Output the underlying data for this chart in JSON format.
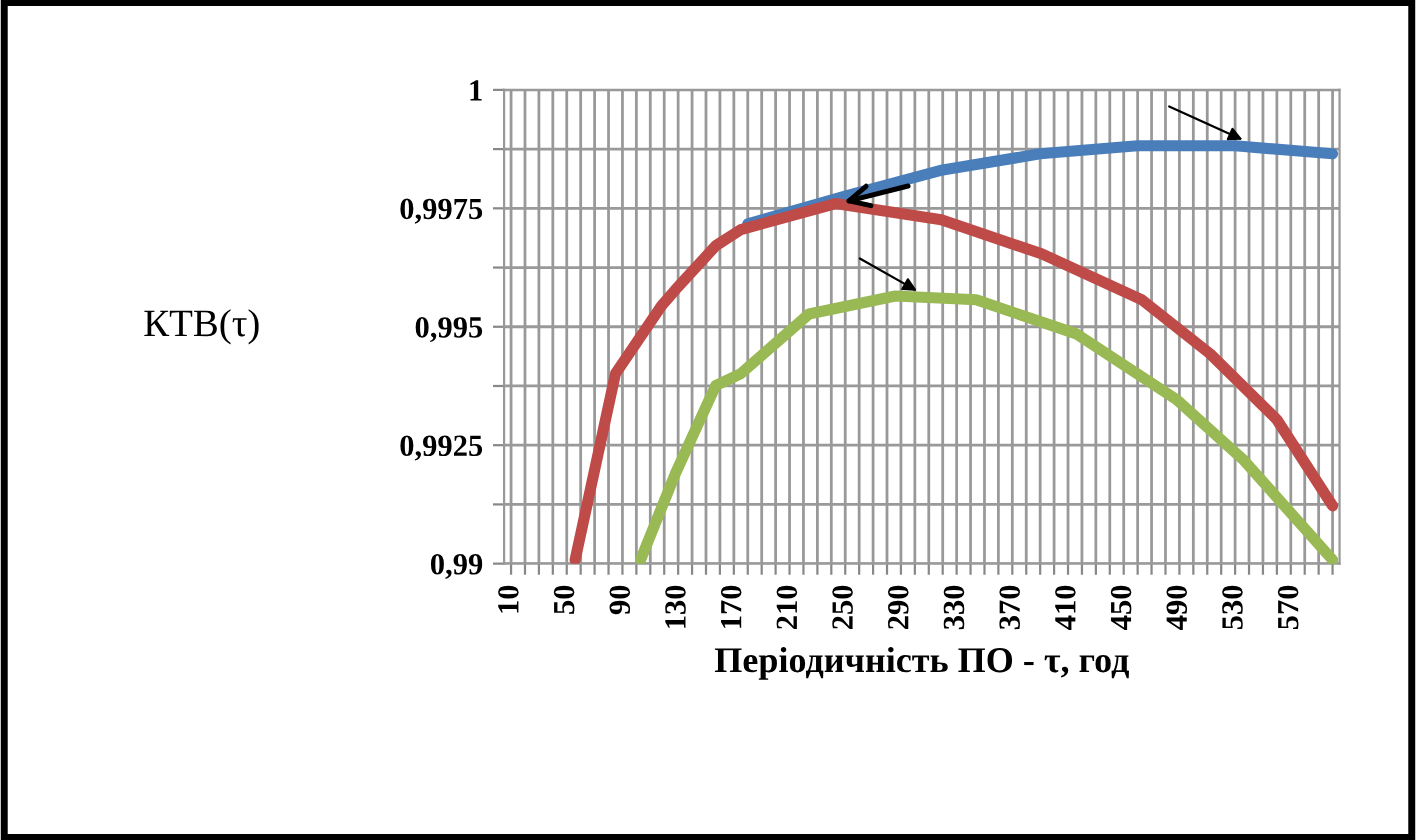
{
  "chart_data": {
    "type": "line",
    "xlabel": "Періодичність ПО - τ, год",
    "ylabel": "КТВ(τ)",
    "xlim": [
      5,
      605
    ],
    "ylim": [
      0.99,
      1
    ],
    "xticks": [
      10,
      {
        "value": 20,
        "label": null
      },
      {
        "value": 30,
        "label": null
      },
      {
        "value": 40,
        "label": null
      },
      50,
      {
        "value": 60,
        "label": null
      },
      {
        "value": 70,
        "label": null
      },
      {
        "value": 80,
        "label": null
      },
      90,
      {
        "value": 100,
        "label": null
      },
      {
        "value": 110,
        "label": null
      },
      {
        "value": 120,
        "label": null
      },
      130,
      {
        "value": 140,
        "label": null
      },
      {
        "value": 150,
        "label": null
      },
      {
        "value": 160,
        "label": null
      },
      170,
      {
        "value": 180,
        "label": null
      },
      {
        "value": 190,
        "label": null
      },
      {
        "value": 200,
        "label": null
      },
      210,
      {
        "value": 220,
        "label": null
      },
      {
        "value": 230,
        "label": null
      },
      {
        "value": 240,
        "label": null
      },
      250,
      {
        "value": 260,
        "label": null
      },
      {
        "value": 270,
        "label": null
      },
      {
        "value": 280,
        "label": null
      },
      290,
      {
        "value": 300,
        "label": null
      },
      {
        "value": 310,
        "label": null
      },
      {
        "value": 320,
        "label": null
      },
      330,
      {
        "value": 340,
        "label": null
      },
      {
        "value": 350,
        "label": null
      },
      {
        "value": 360,
        "label": null
      },
      370,
      {
        "value": 380,
        "label": null
      },
      {
        "value": 390,
        "label": null
      },
      {
        "value": 400,
        "label": null
      },
      410,
      {
        "value": 420,
        "label": null
      },
      {
        "value": 430,
        "label": null
      },
      {
        "value": 440,
        "label": null
      },
      450,
      {
        "value": 460,
        "label": null
      },
      {
        "value": 470,
        "label": null
      },
      {
        "value": 480,
        "label": null
      },
      490,
      {
        "value": 500,
        "label": null
      },
      {
        "value": 510,
        "label": null
      },
      {
        "value": 520,
        "label": null
      },
      530,
      {
        "value": 540,
        "label": null
      },
      {
        "value": 550,
        "label": null
      },
      {
        "value": 560,
        "label": null
      },
      570,
      {
        "value": 580,
        "label": null
      },
      {
        "value": 590,
        "label": null
      },
      {
        "value": 600,
        "label": null
      }
    ],
    "yticks": [
      {
        "value": 0.99,
        "label": "0,99"
      },
      {
        "value": 0.99125,
        "label": null
      },
      {
        "value": 0.9925,
        "label": "0,9925"
      },
      {
        "value": 0.99375,
        "label": null
      },
      {
        "value": 0.995,
        "label": "0,995"
      },
      {
        "value": 0.99625,
        "label": null
      },
      {
        "value": 0.9975,
        "label": "0,9975"
      },
      {
        "value": 0.99875,
        "label": null
      },
      {
        "value": 1,
        "label": "1"
      }
    ],
    "grid": true,
    "legend": false,
    "marker": "none",
    "line_style": "solid",
    "series": [
      {
        "color": "#4a7ebb",
        "x": [
          180,
          250,
          320,
          390,
          460,
          530,
          600
        ],
        "values": [
          0.99717,
          0.99776,
          0.99831,
          0.99865,
          0.99882,
          0.99882,
          0.99865
        ]
      },
      {
        "color": "#be4b48",
        "x": [
          56,
          85,
          118,
          128,
          157,
          175,
          243,
          319,
          391,
          463,
          512,
          560,
          600
        ],
        "values": [
          0.99008,
          0.99401,
          0.99544,
          0.99578,
          0.99671,
          0.99705,
          0.9976,
          0.99726,
          0.99654,
          0.99557,
          0.99443,
          0.99304,
          0.99122
        ]
      },
      {
        "color": "#98b954",
        "x": [
          103,
          128,
          157,
          175,
          224,
          286,
          344,
          416,
          488,
          536,
          600
        ],
        "values": [
          0.99008,
          0.9919,
          0.99376,
          0.99401,
          0.99527,
          0.99565,
          0.99557,
          0.99485,
          0.99346,
          0.99219,
          0.99008
        ]
      }
    ]
  }
}
